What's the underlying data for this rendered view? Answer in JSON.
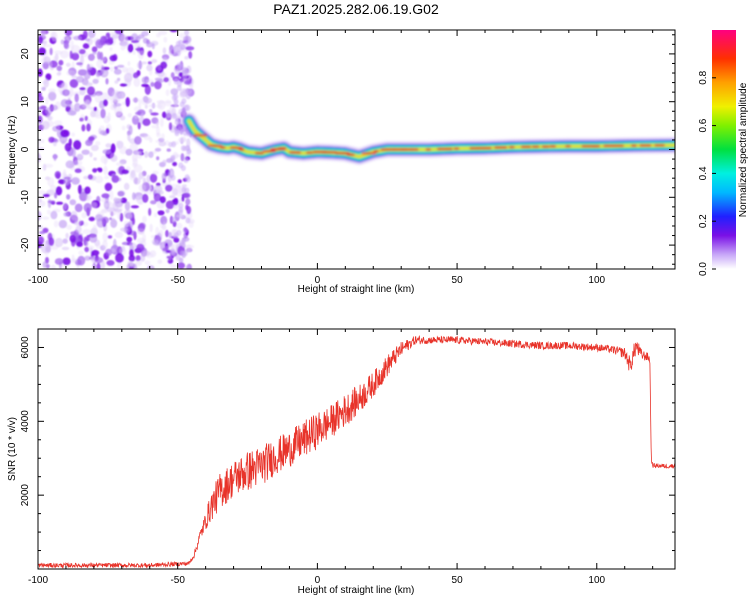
{
  "figure_title": "PAZ1.2025.282.06.19.G02",
  "colors": {
    "background": "#ffffff",
    "axis": "#000000",
    "snr_line": "#e8332a",
    "noise_purple": "#7a10e6",
    "ridge_core": "#e8202a",
    "ridge_mid": "#f0e030",
    "ridge_outer": "#00e0e0",
    "ridge_edge": "#2020e0"
  },
  "chart_data": [
    {
      "type": "heatmap",
      "title": "",
      "xlabel": "Height of straight line (km)",
      "ylabel": "Frequency (Hz)",
      "xlim": [
        -100,
        128
      ],
      "ylim": [
        -25,
        25
      ],
      "x_ticks": [
        "-100",
        "-50",
        "0",
        "50",
        "100"
      ],
      "x_tick_values": [
        -100,
        -50,
        0,
        50,
        100
      ],
      "y_ticks": [
        "-20",
        "-10",
        "0",
        "10",
        "20"
      ],
      "y_tick_values": [
        -20,
        -10,
        0,
        10,
        20
      ],
      "colorbar": {
        "label": "Normalized spectral amplitude",
        "range": [
          0,
          1
        ],
        "ticks": [
          "0.0",
          "0.2",
          "0.4",
          "0.6",
          "0.8"
        ],
        "tick_values": [
          0.0,
          0.2,
          0.4,
          0.6,
          0.8
        ],
        "colormap": "rainbow"
      },
      "noise_region": {
        "x_range": [
          -100,
          -45
        ],
        "description": "scattered low-amplitude energy"
      },
      "ridge": {
        "x": [
          -46,
          -44,
          -42,
          -40,
          -38,
          -35,
          -32,
          -30,
          -28,
          -25,
          -20,
          -15,
          -12,
          -10,
          -5,
          0,
          5,
          10,
          15,
          20,
          25,
          30,
          40,
          50,
          60,
          70,
          80,
          90,
          100,
          110,
          128
        ],
        "frequency": [
          6,
          4,
          3,
          2,
          1,
          0.5,
          0.3,
          0.5,
          0.2,
          -0.5,
          -0.8,
          0,
          0.3,
          -0.5,
          -0.8,
          -0.5,
          -0.6,
          -0.8,
          -1.5,
          -0.5,
          0,
          0,
          0,
          0.2,
          0.3,
          0.5,
          0.6,
          0.7,
          0.7,
          0.8,
          0.9
        ]
      }
    },
    {
      "type": "line",
      "title": "",
      "xlabel": "Height of straight line (km)",
      "ylabel": "SNR (10 * v/v)",
      "xlim": [
        -100,
        128
      ],
      "ylim": [
        0,
        6500
      ],
      "x_ticks": [
        "-100",
        "-50",
        "0",
        "50",
        "100"
      ],
      "x_tick_values": [
        -100,
        -50,
        0,
        50,
        100
      ],
      "y_ticks": [
        "2000",
        "4000",
        "6000"
      ],
      "y_tick_values": [
        2000,
        4000,
        6000
      ],
      "series": [
        {
          "name": "SNR",
          "x": [
            -100,
            -80,
            -60,
            -46,
            -44,
            -42,
            -40,
            -38,
            -35,
            -32,
            -30,
            -25,
            -20,
            -15,
            -10,
            -5,
            0,
            5,
            10,
            15,
            20,
            25,
            30,
            35,
            40,
            50,
            60,
            70,
            80,
            90,
            100,
            105,
            110,
            112,
            114,
            116,
            118,
            119,
            119.5,
            120,
            122,
            125,
            128
          ],
          "values": [
            100,
            100,
            100,
            150,
            400,
            900,
            1300,
            1700,
            2100,
            2300,
            2450,
            2650,
            2800,
            3050,
            3250,
            3500,
            3750,
            4000,
            4300,
            4600,
            5000,
            5500,
            5950,
            6200,
            6200,
            6200,
            6150,
            6100,
            6050,
            6050,
            6000,
            5950,
            5850,
            5500,
            6050,
            5800,
            5750,
            5700,
            3000,
            2800,
            2800,
            2780,
            2800
          ],
          "noise_amplitude": [
            60,
            60,
            60,
            60,
            80,
            150,
            250,
            400,
            500,
            500,
            500,
            550,
            550,
            500,
            500,
            500,
            500,
            450,
            450,
            400,
            350,
            300,
            200,
            120,
            100,
            100,
            100,
            100,
            100,
            100,
            100,
            100,
            150,
            250,
            250,
            150,
            120,
            100,
            60,
            60,
            60,
            60,
            60
          ]
        }
      ]
    }
  ]
}
